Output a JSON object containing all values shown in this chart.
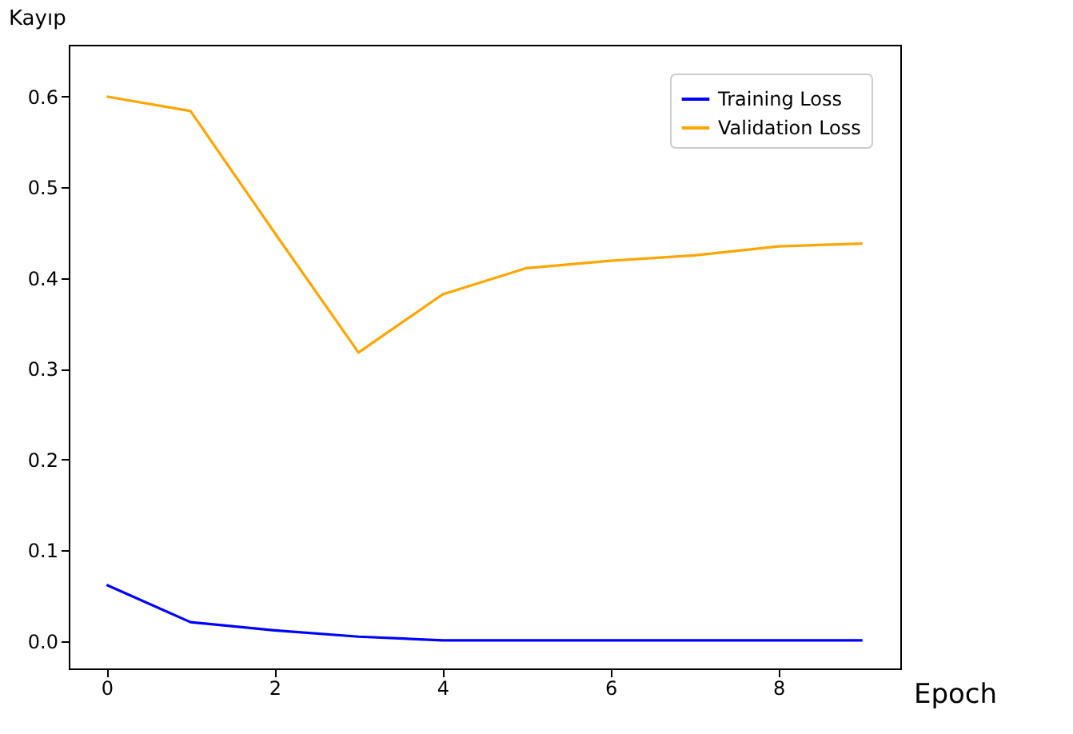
{
  "chart_data": {
    "type": "line",
    "xlabel": "Epoch",
    "ylabel": "Kayıp",
    "x": [
      0,
      1,
      2,
      3,
      4,
      5,
      6,
      7,
      8,
      9
    ],
    "series": [
      {
        "name": "Training Loss",
        "color": "#0000ff",
        "values": [
          0.062,
          0.021,
          0.012,
          0.005,
          0.001,
          0.001,
          0.001,
          0.001,
          0.001,
          0.001
        ]
      },
      {
        "name": "Validation Loss",
        "color": "#ffa500",
        "values": [
          0.6,
          0.584,
          0.45,
          0.318,
          0.382,
          0.411,
          0.419,
          0.425,
          0.435,
          0.438
        ]
      }
    ],
    "xlim": [
      -0.45,
      9.45
    ],
    "ylim": [
      -0.03,
      0.657
    ],
    "xticks": [
      0,
      2,
      4,
      6,
      8
    ],
    "yticks": [
      {
        "value": 0,
        "label": "0.0"
      },
      {
        "value": 0.1,
        "label": "0.1"
      },
      {
        "value": 0.2,
        "label": "0.2"
      },
      {
        "value": 0.3,
        "label": "0.3"
      },
      {
        "value": 0.4,
        "label": "0.4"
      },
      {
        "value": 0.5,
        "label": "0.5"
      },
      {
        "value": 0.6,
        "label": "0.6"
      }
    ],
    "grid": false,
    "legend": "top right",
    "marker": "none",
    "line_style": "solid"
  }
}
